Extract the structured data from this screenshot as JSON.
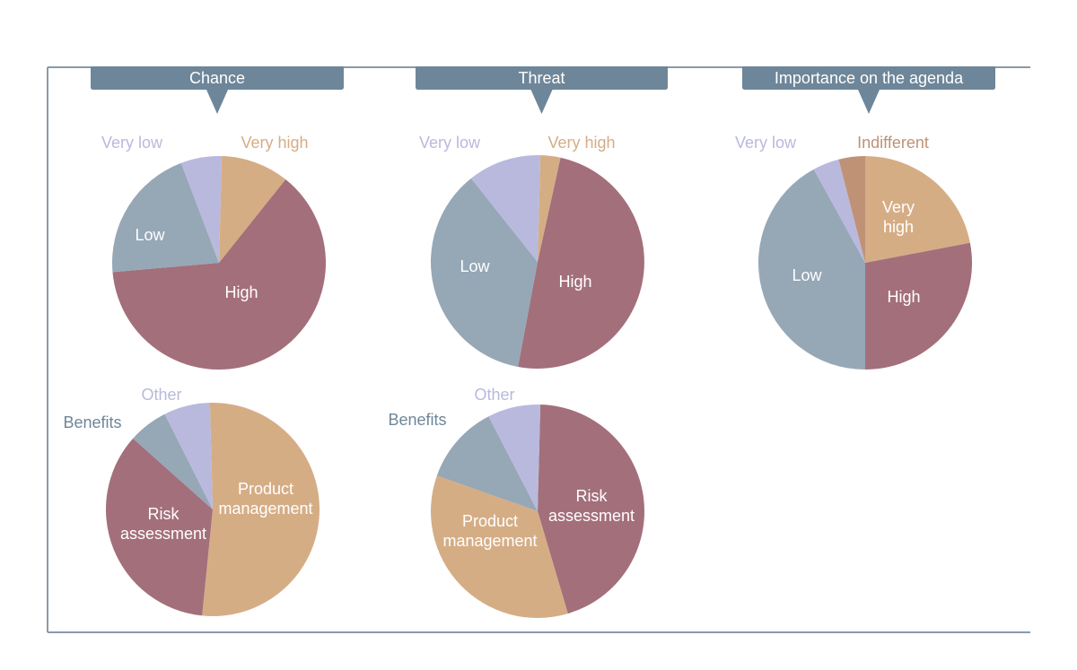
{
  "headers": {
    "chance": "Chance",
    "threat": "Threat",
    "importance": "Importance on the agenda"
  },
  "colors": {
    "very_low": "#b9b9dd",
    "very_high": "#d5ad85",
    "high": "#a36f7b",
    "low": "#96a7b6",
    "indifferent": "#bf9276",
    "tab": "#6e8699",
    "benefits_label": "#6e8699"
  },
  "chart_data": [
    {
      "type": "pie",
      "title": "Chance",
      "slices": [
        {
          "label": "Very high",
          "value": 10
        },
        {
          "label": "High",
          "value": 61
        },
        {
          "label": "Low",
          "value": 20
        },
        {
          "label": "Very low",
          "value": 6
        }
      ]
    },
    {
      "type": "pie",
      "title": "Threat",
      "slices": [
        {
          "label": "Very high",
          "value": 3
        },
        {
          "label": "High",
          "value": 49
        },
        {
          "label": "Low",
          "value": 36
        },
        {
          "label": "Very low",
          "value": 11
        }
      ]
    },
    {
      "type": "pie",
      "title": "Importance on the agenda",
      "slices": [
        {
          "label": "Very high",
          "value": 22
        },
        {
          "label": "High",
          "value": 28
        },
        {
          "label": "Low",
          "value": 42
        },
        {
          "label": "Very low",
          "value": 4
        },
        {
          "label": "Indifferent",
          "value": 4
        }
      ]
    },
    {
      "type": "pie",
      "slices": [
        {
          "label": "Product management",
          "value": 52
        },
        {
          "label": "Risk assessment",
          "value": 35
        },
        {
          "label": "Benefits",
          "value": 6
        },
        {
          "label": "Other",
          "value": 7
        }
      ]
    },
    {
      "type": "pie",
      "slices": [
        {
          "label": "Risk assessment",
          "value": 45
        },
        {
          "label": "Product management",
          "value": 35
        },
        {
          "label": "Benefits",
          "value": 12
        },
        {
          "label": "Other",
          "value": 8
        }
      ]
    }
  ]
}
